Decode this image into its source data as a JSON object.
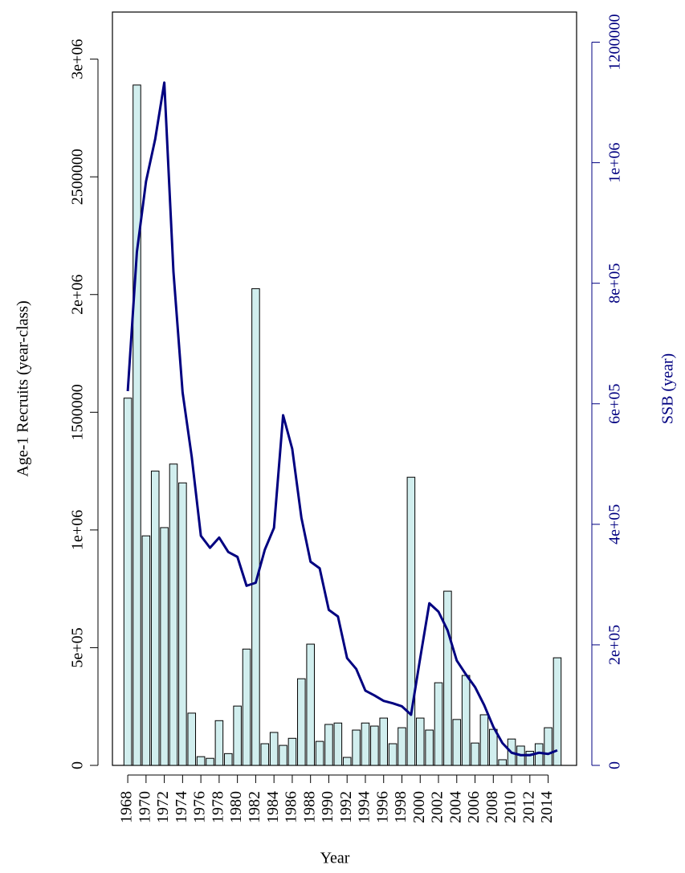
{
  "chart_data": {
    "type": "bar",
    "x_label": "Year",
    "y_label": "Age-1 Recruits (year-class)",
    "y2_label": "SSB (year)",
    "categories": [
      "1968",
      null,
      "1970",
      null,
      "1972",
      null,
      "1974",
      null,
      "1976",
      null,
      "1978",
      null,
      "1980",
      null,
      "1982",
      null,
      "1984",
      null,
      "1986",
      null,
      "1988",
      null,
      "1990",
      null,
      "1992",
      null,
      "1994",
      null,
      "1996",
      null,
      "1998",
      null,
      "2000",
      null,
      "2002",
      null,
      "2004",
      null,
      "2006",
      null,
      "2008",
      null,
      "2010",
      null,
      "2012",
      null,
      "2014",
      null
    ],
    "series": [
      {
        "name": "Age-1 Recruits",
        "type": "bar",
        "color": "#d1eeee",
        "values": [
          1560000,
          2890000,
          975000,
          1250000,
          1010000,
          1280000,
          1200000,
          222000,
          37000,
          30000,
          190000,
          50000,
          252000,
          494000,
          2025000,
          92000,
          140000,
          85000,
          115000,
          368000,
          515000,
          102000,
          174000,
          180000,
          34000,
          150000,
          180000,
          167000,
          201000,
          92000,
          160000,
          1224000,
          201000,
          150000,
          351000,
          740000,
          195000,
          382000,
          95000,
          215000,
          153000,
          24000,
          112000,
          82000,
          60000,
          92000,
          160000,
          457000
        ]
      },
      {
        "name": "SSB",
        "type": "line",
        "axis": "y2",
        "color": "#000080",
        "values": [
          621000,
          852000,
          969000,
          1039000,
          1133000,
          819000,
          619000,
          512000,
          381000,
          361000,
          378000,
          354000,
          346000,
          298000,
          303000,
          358000,
          394000,
          581000,
          525000,
          411000,
          338000,
          327000,
          258000,
          247000,
          178000,
          160000,
          124000,
          116000,
          107000,
          103000,
          98000,
          84000,
          178000,
          269000,
          255000,
          224000,
          174000,
          151000,
          130000,
          100000,
          64000,
          37000,
          21000,
          17000,
          17000,
          21000,
          19000,
          25000
        ]
      }
    ],
    "ylim": [
      0,
      3200000
    ],
    "yticks": [
      0,
      {
        "value": 500000,
        "label": "5e+05"
      },
      {
        "value": 1000000,
        "label": "1e+06"
      },
      1500000,
      {
        "value": 2000000,
        "label": "2e+06"
      },
      2500000,
      {
        "value": 3000000,
        "label": "3e+06"
      }
    ],
    "y2lim": [
      0,
      1250000
    ],
    "y2ticks": [
      0,
      {
        "value": 200000,
        "label": "2e+05"
      },
      {
        "value": 400000,
        "label": "4e+05"
      },
      {
        "value": 600000,
        "label": "6e+05"
      },
      {
        "value": 800000,
        "label": "8e+05"
      },
      {
        "value": 1000000,
        "label": "1e+06"
      },
      1200000
    ],
    "y2_color": "#000080"
  }
}
